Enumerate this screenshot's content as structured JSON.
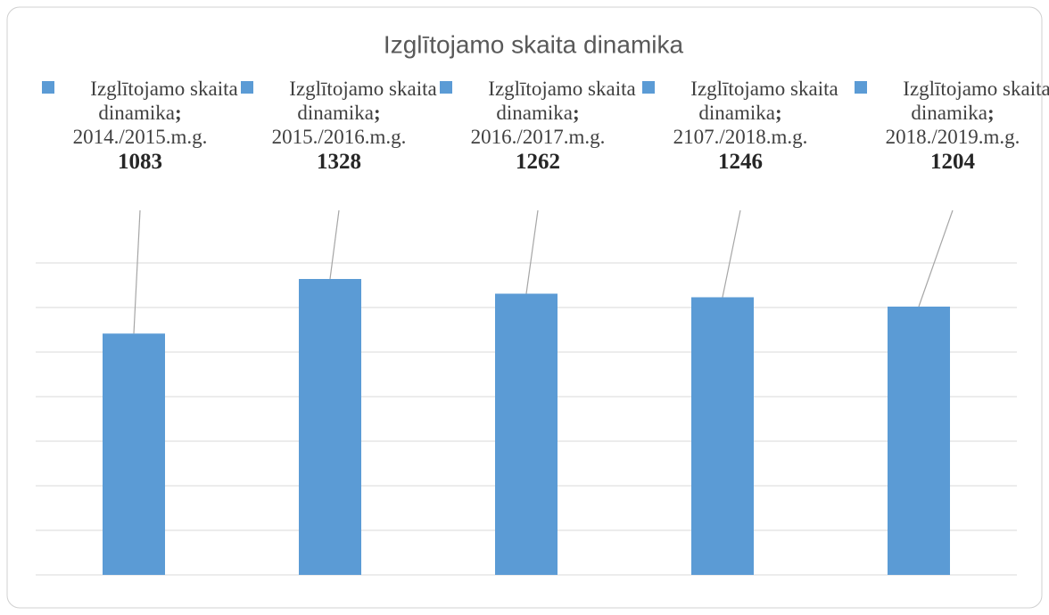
{
  "chart_data": {
    "type": "bar",
    "title": "Izglītojamo skaita dinamika",
    "categories": [
      "2014./2015.m.g.",
      "2015./2016.m.g.",
      "2016./2017.m.g.",
      "2107./2018.m.g.",
      "2018./2019.m.g."
    ],
    "series": [
      {
        "name": "Izglītojamo skaita dinamika",
        "color": "#5b9bd5",
        "values": [
          1083,
          1328,
          1262,
          1246,
          1204
        ]
      }
    ],
    "ylim": [
      0,
      1400
    ],
    "yticks": [
      0,
      200,
      400,
      600,
      800,
      1000,
      1200,
      1400
    ],
    "grid": true
  }
}
